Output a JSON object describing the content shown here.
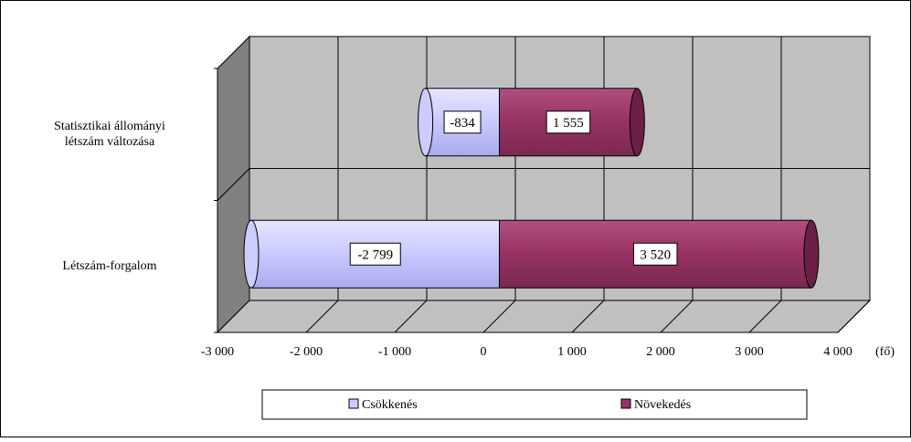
{
  "chart_data": {
    "type": "bar",
    "orientation": "horizontal",
    "stacked": true,
    "style": "3d-cylinder",
    "categories": [
      "Statisztikai állományi létszám változása",
      "Létszám-forgalom"
    ],
    "category_lines": [
      [
        "Statisztikai állományi",
        "létszám változása"
      ],
      [
        "Létszám-forgalom"
      ]
    ],
    "series": [
      {
        "name": "Csökkenés",
        "values": [
          -834,
          -2799
        ],
        "labels": [
          "-834",
          "-2 799"
        ],
        "color": "#ccccff"
      },
      {
        "name": "Növekedés",
        "values": [
          1555,
          3520
        ],
        "labels": [
          "1 555",
          "3 520"
        ],
        "color": "#993366"
      }
    ],
    "xlim": [
      -3000,
      4000
    ],
    "xticks": [
      -3000,
      -2000,
      -1000,
      0,
      1000,
      2000,
      3000,
      4000
    ],
    "xtick_labels": [
      "-3 000",
      "-2 000",
      "-1 000",
      "0",
      "1 000",
      "2 000",
      "3 000",
      "4 000"
    ],
    "xunit": "(fő)",
    "grid": true,
    "legend": "bottom",
    "colors": {
      "wall": "#c0c0c0",
      "floor": "#c0c0c0",
      "side_wall": "#808080",
      "grid": "#000000"
    }
  }
}
